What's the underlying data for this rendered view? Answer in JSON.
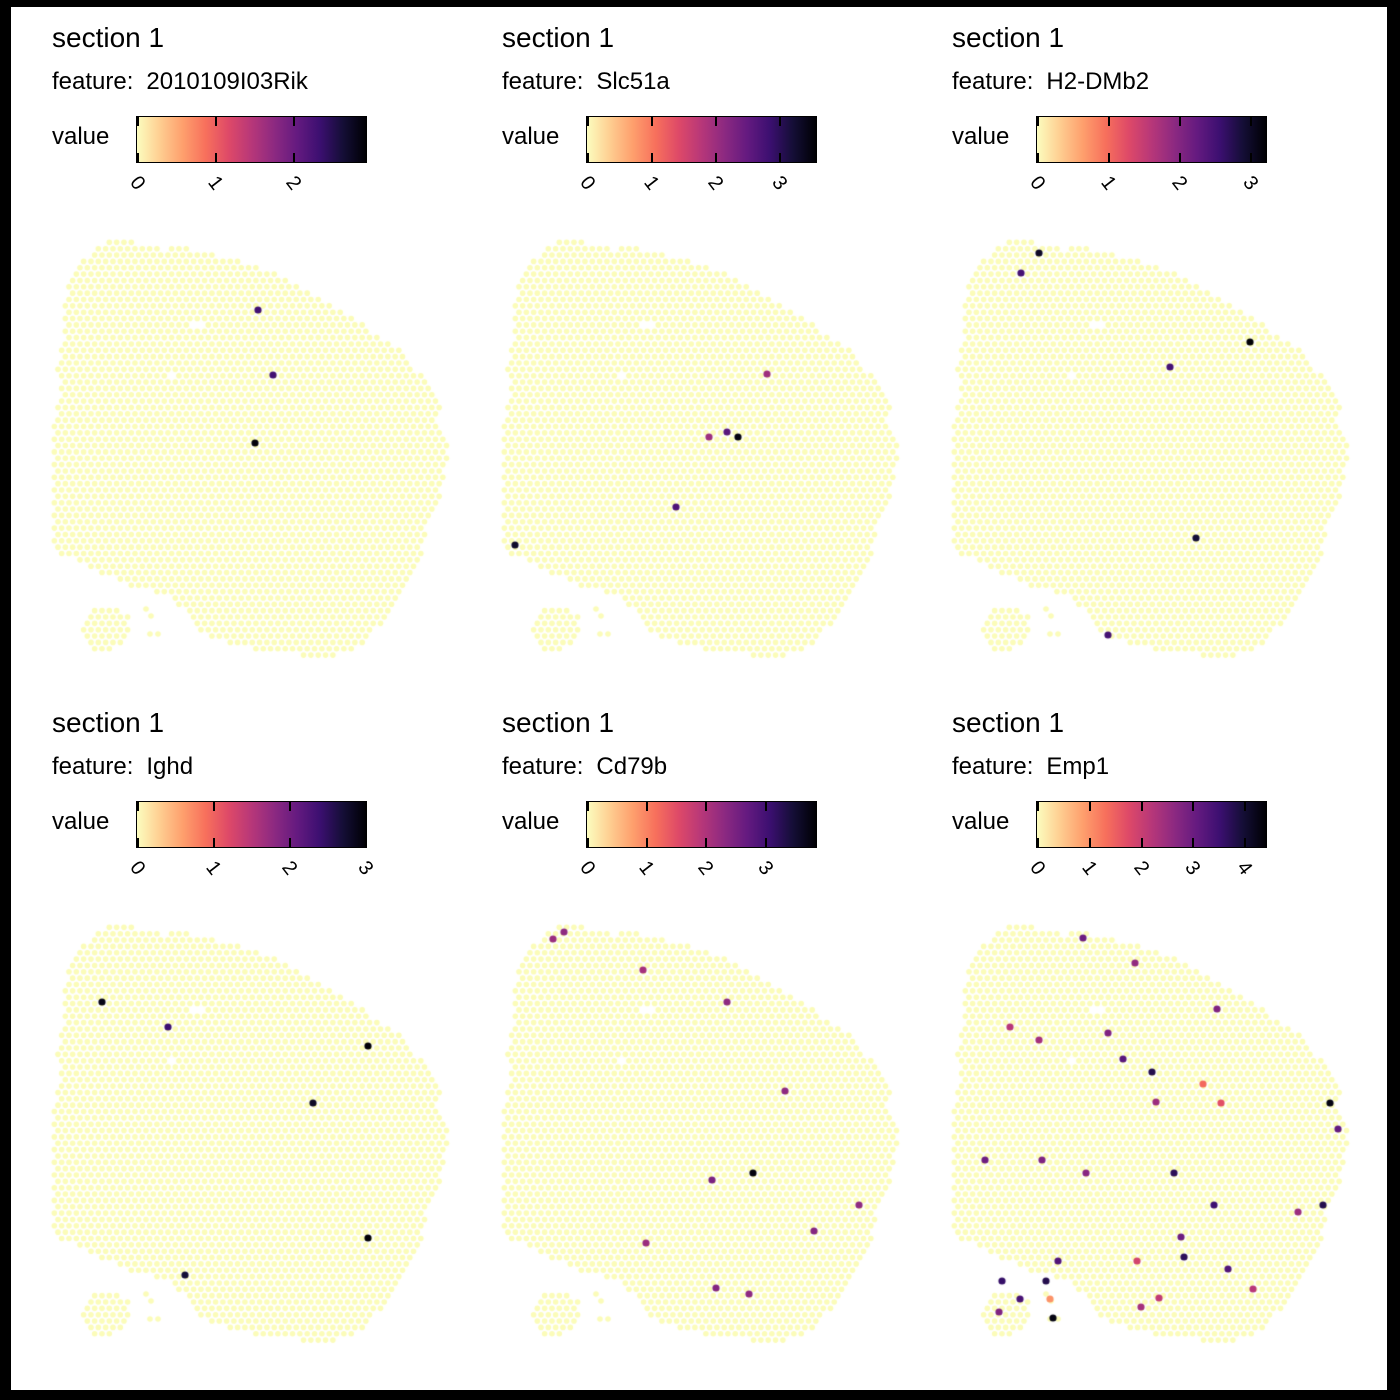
{
  "frame_color": "#000000",
  "chart_data": {
    "type": "scatter",
    "subtype": "spatial-gene-expression-grid",
    "grid_rows": 2,
    "grid_cols": 3,
    "background_color": "#ffffff",
    "colormap": "magma_r",
    "colormap_anchors": [
      [
        0.0,
        "#000004"
      ],
      [
        0.1,
        "#140e36"
      ],
      [
        0.2,
        "#3b0f70"
      ],
      [
        0.3,
        "#641a80"
      ],
      [
        0.4,
        "#8c2981"
      ],
      [
        0.5,
        "#b73779"
      ],
      [
        0.6,
        "#de4968"
      ],
      [
        0.7,
        "#f7705c"
      ],
      [
        0.8,
        "#fe9f6d"
      ],
      [
        0.9,
        "#fece91"
      ],
      [
        1.0,
        "#fcfdbf"
      ]
    ],
    "tissue": {
      "lattice": {
        "dx": 7.33,
        "dy": 6.35,
        "radius": 2.8,
        "color": "#fbfcb9"
      },
      "highlight_radius": 3.6,
      "outline": [
        [
          50,
          16
        ],
        [
          60,
          11
        ],
        [
          75,
          10
        ],
        [
          90,
          13
        ],
        [
          105,
          13
        ],
        [
          120,
          20
        ],
        [
          135,
          17
        ],
        [
          150,
          21
        ],
        [
          165,
          22
        ],
        [
          185,
          29
        ],
        [
          205,
          34
        ],
        [
          225,
          42
        ],
        [
          245,
          51
        ],
        [
          265,
          61
        ],
        [
          277,
          70
        ],
        [
          293,
          78
        ],
        [
          310,
          88
        ],
        [
          325,
          100
        ],
        [
          343,
          110
        ],
        [
          357,
          119
        ],
        [
          373,
          142
        ],
        [
          385,
          155
        ],
        [
          398,
          173
        ],
        [
          392,
          188
        ],
        [
          403,
          210
        ],
        [
          403,
          233
        ],
        [
          395,
          267
        ],
        [
          382,
          300
        ],
        [
          375,
          332
        ],
        [
          360,
          357
        ],
        [
          345,
          383
        ],
        [
          323,
          410
        ],
        [
          300,
          424
        ],
        [
          270,
          428
        ],
        [
          242,
          422
        ],
        [
          213,
          420
        ],
        [
          190,
          414
        ],
        [
          170,
          409
        ],
        [
          152,
          399
        ],
        [
          138,
          378
        ],
        [
          125,
          368
        ],
        [
          110,
          362
        ],
        [
          85,
          355
        ],
        [
          55,
          343
        ],
        [
          40,
          336
        ],
        [
          27,
          326
        ],
        [
          15,
          328
        ],
        [
          9,
          310
        ],
        [
          7,
          275
        ],
        [
          7,
          240
        ],
        [
          8,
          200
        ],
        [
          15,
          160
        ],
        [
          12,
          132
        ],
        [
          18,
          108
        ],
        [
          17,
          80
        ],
        [
          23,
          56
        ],
        [
          35,
          34
        ]
      ],
      "blob": [
        [
          48,
          377
        ],
        [
          67,
          375
        ],
        [
          81,
          382
        ],
        [
          87,
          395
        ],
        [
          83,
          410
        ],
        [
          70,
          420
        ],
        [
          55,
          422
        ],
        [
          43,
          415
        ],
        [
          37,
          402
        ],
        [
          39,
          387
        ]
      ],
      "holes": [
        [
          128,
          147,
          5
        ],
        [
          150,
          95,
          6
        ]
      ],
      "satellites": [
        [
          101,
          379
        ],
        [
          106,
          386
        ],
        [
          105,
          404
        ],
        [
          113,
          404
        ]
      ]
    },
    "panels": [
      {
        "section": "section 1",
        "feature_label": "feature:",
        "feature": "2010109I03Rik",
        "value_label": "value",
        "vmax": 2.94,
        "ticks": [
          0,
          1,
          2
        ],
        "spots": [
          [
            213,
            80,
            2.3
          ],
          [
            228,
            145,
            2.3
          ],
          [
            210,
            213,
            2.9
          ]
        ]
      },
      {
        "section": "section 1",
        "feature_label": "feature:",
        "feature": "Slc51a",
        "value_label": "value",
        "vmax": 3.58,
        "ticks": [
          0,
          1,
          2,
          3
        ],
        "spots": [
          [
            272,
            144,
            2.0
          ],
          [
            232,
            202,
            2.6
          ],
          [
            214,
            207,
            2.0
          ],
          [
            243,
            207,
            3.5
          ],
          [
            181,
            277,
            2.7
          ],
          [
            20,
            315,
            3.3
          ]
        ]
      },
      {
        "section": "section 1",
        "feature_label": "feature:",
        "feature": "H2-DMb2",
        "value_label": "value",
        "vmax": 3.22,
        "ticks": [
          0,
          1,
          2,
          3
        ],
        "spots": [
          [
            94,
            23,
            3.0
          ],
          [
            76,
            43,
            2.5
          ],
          [
            305,
            112,
            3.2
          ],
          [
            225,
            137,
            2.5
          ],
          [
            251,
            308,
            2.9
          ],
          [
            163,
            405,
            2.5
          ]
        ]
      },
      {
        "section": "section 1",
        "feature_label": "feature:",
        "feature": "Ighd",
        "value_label": "value",
        "vmax": 3.01,
        "ticks": [
          0,
          1,
          2,
          3
        ],
        "spots": [
          [
            57,
            87,
            2.9
          ],
          [
            123,
            112,
            2.4
          ],
          [
            323,
            131,
            3.0
          ],
          [
            268,
            188,
            2.8
          ],
          [
            323,
            323,
            3.0
          ],
          [
            140,
            360,
            2.7
          ]
        ]
      },
      {
        "section": "section 1",
        "feature_label": "feature:",
        "feature": "Cd79b",
        "value_label": "value",
        "vmax": 3.87,
        "ticks": [
          0,
          1,
          2,
          3
        ],
        "spots": [
          [
            69,
            17,
            2.3
          ],
          [
            58,
            24,
            2.2
          ],
          [
            148,
            55,
            2.1
          ],
          [
            232,
            87,
            2.3
          ],
          [
            290,
            176,
            2.3
          ],
          [
            258,
            258,
            3.8
          ],
          [
            217,
            265,
            2.5
          ],
          [
            364,
            290,
            2.3
          ],
          [
            319,
            316,
            2.4
          ],
          [
            151,
            328,
            2.2
          ],
          [
            221,
            373,
            2.4
          ],
          [
            254,
            379,
            2.3
          ]
        ]
      },
      {
        "section": "section 1",
        "feature_label": "feature:",
        "feature": "Emp1",
        "value_label": "value",
        "vmax": 4.42,
        "ticks": [
          0,
          1,
          2,
          3,
          4
        ],
        "spots": [
          [
            138,
            23,
            3.0
          ],
          [
            190,
            48,
            2.6
          ],
          [
            272,
            94,
            2.8
          ],
          [
            65,
            112,
            2.2
          ],
          [
            163,
            118,
            2.8
          ],
          [
            94,
            125,
            2.4
          ],
          [
            178,
            144,
            3.2
          ],
          [
            207,
            157,
            3.8
          ],
          [
            258,
            169,
            1.4
          ],
          [
            211,
            187,
            2.5
          ],
          [
            276,
            188,
            1.7
          ],
          [
            385,
            188,
            4.3
          ],
          [
            393,
            214,
            3.1
          ],
          [
            40,
            245,
            3.0
          ],
          [
            97,
            245,
            2.8
          ],
          [
            141,
            258,
            2.7
          ],
          [
            229,
            258,
            3.7
          ],
          [
            269,
            290,
            3.5
          ],
          [
            353,
            297,
            2.5
          ],
          [
            378,
            290,
            3.8
          ],
          [
            236,
            322,
            3.0
          ],
          [
            239,
            342,
            3.7
          ],
          [
            113,
            346,
            3.3
          ],
          [
            192,
            346,
            1.9
          ],
          [
            283,
            354,
            3.3
          ],
          [
            57,
            366,
            3.6
          ],
          [
            101,
            366,
            3.8
          ],
          [
            308,
            374,
            2.2
          ],
          [
            75,
            384,
            3.4
          ],
          [
            105,
            384,
            1.0
          ],
          [
            214,
            383,
            2.1
          ],
          [
            196,
            392,
            2.4
          ],
          [
            54,
            397,
            2.8
          ],
          [
            108,
            403,
            4.3
          ]
        ]
      }
    ]
  }
}
